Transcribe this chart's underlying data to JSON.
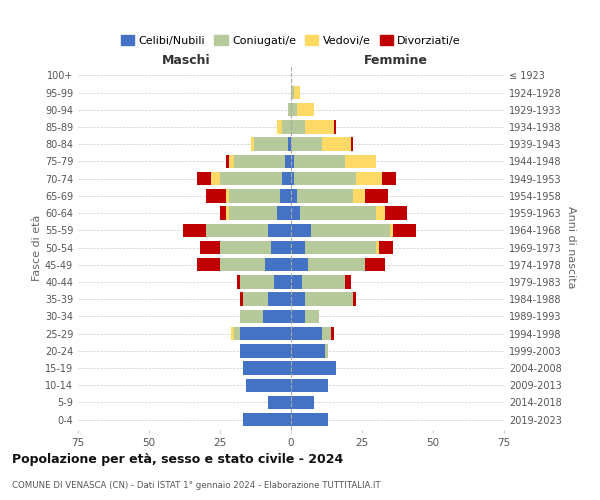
{
  "age_groups": [
    "0-4",
    "5-9",
    "10-14",
    "15-19",
    "20-24",
    "25-29",
    "30-34",
    "35-39",
    "40-44",
    "45-49",
    "50-54",
    "55-59",
    "60-64",
    "65-69",
    "70-74",
    "75-79",
    "80-84",
    "85-89",
    "90-94",
    "95-99",
    "100+"
  ],
  "birth_years": [
    "2019-2023",
    "2014-2018",
    "2009-2013",
    "2004-2008",
    "1999-2003",
    "1994-1998",
    "1989-1993",
    "1984-1988",
    "1979-1983",
    "1974-1978",
    "1969-1973",
    "1964-1968",
    "1959-1963",
    "1954-1958",
    "1949-1953",
    "1944-1948",
    "1939-1943",
    "1934-1938",
    "1929-1933",
    "1924-1928",
    "≤ 1923"
  ],
  "male": {
    "celibi": [
      17,
      8,
      16,
      17,
      18,
      18,
      10,
      8,
      6,
      9,
      7,
      8,
      5,
      4,
      3,
      2,
      1,
      0,
      0,
      0,
      0
    ],
    "coniugati": [
      0,
      0,
      0,
      0,
      0,
      2,
      8,
      9,
      12,
      16,
      18,
      22,
      17,
      18,
      22,
      18,
      12,
      3,
      1,
      0,
      0
    ],
    "vedovi": [
      0,
      0,
      0,
      0,
      0,
      1,
      0,
      0,
      0,
      0,
      0,
      0,
      1,
      1,
      3,
      2,
      1,
      2,
      0,
      0,
      0
    ],
    "divorziati": [
      0,
      0,
      0,
      0,
      0,
      0,
      0,
      1,
      1,
      8,
      7,
      8,
      2,
      7,
      5,
      1,
      0,
      0,
      0,
      0,
      0
    ]
  },
  "female": {
    "nubili": [
      13,
      8,
      13,
      16,
      12,
      11,
      5,
      5,
      4,
      6,
      5,
      7,
      3,
      2,
      1,
      1,
      0,
      0,
      0,
      0,
      0
    ],
    "coniugate": [
      0,
      0,
      0,
      0,
      1,
      3,
      5,
      17,
      15,
      20,
      25,
      28,
      27,
      20,
      22,
      18,
      11,
      5,
      2,
      1,
      0
    ],
    "vedove": [
      0,
      0,
      0,
      0,
      0,
      0,
      0,
      0,
      0,
      0,
      1,
      1,
      3,
      4,
      9,
      11,
      10,
      10,
      6,
      2,
      0
    ],
    "divorziate": [
      0,
      0,
      0,
      0,
      0,
      1,
      0,
      1,
      2,
      7,
      5,
      8,
      8,
      8,
      5,
      0,
      1,
      1,
      0,
      0,
      0
    ]
  },
  "colors": {
    "celibi": "#4472C4",
    "coniugati": "#B5C99A",
    "vedovi": "#FFD966",
    "divorziati": "#C00000"
  },
  "xlim": 75,
  "title": "Popolazione per età, sesso e stato civile - 2024",
  "subtitle": "COMUNE DI VENASCA (CN) - Dati ISTAT 1° gennaio 2024 - Elaborazione TUTTITALIA.IT",
  "ylabel_left": "Fasce di età",
  "ylabel_right": "Anni di nascita",
  "xlabel_male": "Maschi",
  "xlabel_female": "Femmine",
  "legend_labels": [
    "Celibi/Nubili",
    "Coniugati/e",
    "Vedovi/e",
    "Divorziati/e"
  ],
  "background_color": "#ffffff",
  "grid_color": "#cccccc"
}
